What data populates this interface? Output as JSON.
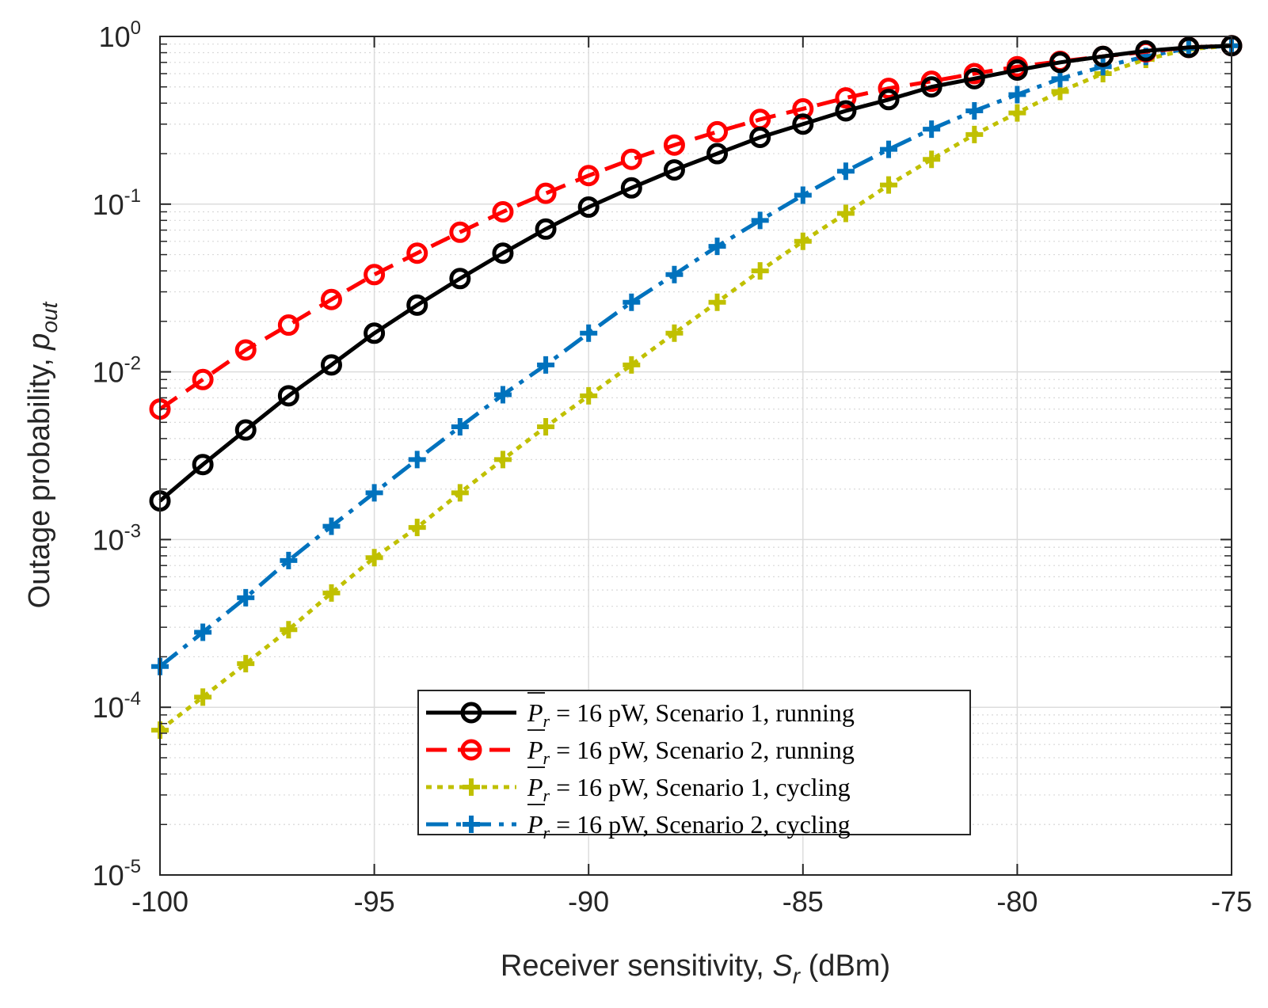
{
  "chart_data": {
    "type": "line",
    "title": "",
    "xlabel": {
      "prefix": "Receiver sensitivity, ",
      "var": "S",
      "sub": "r",
      "suffix": " (dBm)"
    },
    "ylabel": {
      "prefix": "Outage probability, ",
      "var": "p",
      "sub": "out"
    },
    "xlim": [
      -100,
      -75
    ],
    "ylim": [
      1e-05,
      1
    ],
    "yscale": "log",
    "grid": true,
    "minor_grid": true,
    "legend_position": "bottom-right",
    "x_ticks": [
      -100,
      -95,
      -90,
      -85,
      -80,
      -75
    ],
    "x_tick_labels": [
      "-100",
      "-95",
      "-90",
      "-85",
      "-80",
      "-75"
    ],
    "y_ticks": [
      {
        "value": 1,
        "base": "10",
        "exp": "0"
      },
      {
        "value": 0.1,
        "base": "10",
        "exp": "-1"
      },
      {
        "value": 0.01,
        "base": "10",
        "exp": "-2"
      },
      {
        "value": 0.001,
        "base": "10",
        "exp": "-3"
      },
      {
        "value": 0.0001,
        "base": "10",
        "exp": "-4"
      },
      {
        "value": 1e-05,
        "base": "10",
        "exp": "-5"
      }
    ],
    "x": [
      -100,
      -99,
      -98,
      -97,
      -96,
      -95,
      -94,
      -93,
      -92,
      -91,
      -90,
      -89,
      -88,
      -87,
      -86,
      -85,
      -84,
      -83,
      -82,
      -81,
      -80,
      -79,
      -78,
      -77,
      -76,
      -75
    ],
    "series": [
      {
        "name": "P_r = 16 pW, Scenario 1, running",
        "legend": {
          "var": "P",
          "sub": "r",
          "rest": " = 16 pW, Scenario 1, running"
        },
        "color": "#000000",
        "dash": "solid",
        "marker": "circle",
        "values": [
          0.0017,
          0.0028,
          0.0045,
          0.0072,
          0.011,
          0.017,
          0.025,
          0.036,
          0.051,
          0.071,
          0.096,
          0.125,
          0.16,
          0.2,
          0.25,
          0.3,
          0.36,
          0.42,
          0.5,
          0.56,
          0.63,
          0.7,
          0.76,
          0.82,
          0.86,
          0.88
        ]
      },
      {
        "name": "P_r = 16 pW, Scenario 2, running",
        "legend": {
          "var": "P",
          "sub": "r",
          "rest": " = 16 pW, Scenario 2, running"
        },
        "color": "#ff0000",
        "dash": "dashed",
        "marker": "circle",
        "values": [
          0.006,
          0.009,
          0.0135,
          0.019,
          0.027,
          0.038,
          0.051,
          0.068,
          0.09,
          0.116,
          0.148,
          0.185,
          0.225,
          0.27,
          0.32,
          0.37,
          0.43,
          0.49,
          0.54,
          0.6,
          0.66,
          0.71,
          0.76,
          0.81,
          0.86,
          0.88
        ]
      },
      {
        "name": "P_r = 16 pW, Scenario 1, cycling",
        "legend": {
          "var": "P",
          "sub": "r",
          "rest": " = 16 pW, Scenario 1, cycling"
        },
        "color": "#c0c000",
        "dash": "dotted",
        "marker": "plus",
        "values": [
          7.3e-05,
          0.000115,
          0.000182,
          0.00029,
          0.00048,
          0.00078,
          0.00118,
          0.0019,
          0.003,
          0.0047,
          0.0072,
          0.011,
          0.017,
          0.026,
          0.04,
          0.06,
          0.088,
          0.13,
          0.185,
          0.26,
          0.35,
          0.47,
          0.6,
          0.73,
          0.84,
          0.88
        ]
      },
      {
        "name": "P_r = 16 pW, Scenario 2, cycling",
        "legend": {
          "var": "P",
          "sub": "r",
          "rest": " = 16 pW, Scenario 2, cycling"
        },
        "color": "#0072bd",
        "dash": "dashdot",
        "marker": "plus",
        "values": [
          0.000175,
          0.00028,
          0.00045,
          0.00075,
          0.0012,
          0.0019,
          0.003,
          0.0047,
          0.0073,
          0.011,
          0.017,
          0.026,
          0.038,
          0.056,
          0.08,
          0.113,
          0.157,
          0.212,
          0.28,
          0.36,
          0.45,
          0.56,
          0.66,
          0.76,
          0.85,
          0.88
        ]
      }
    ]
  }
}
